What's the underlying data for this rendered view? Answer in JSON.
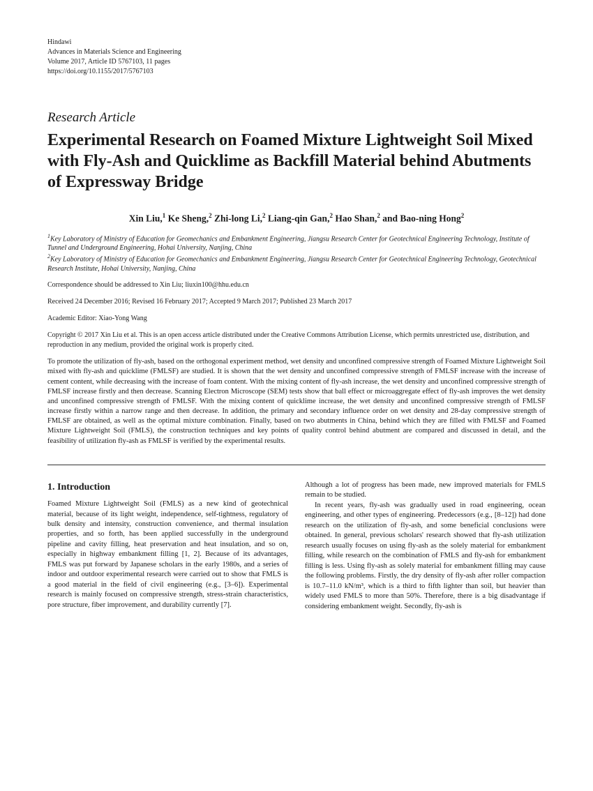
{
  "journal": {
    "publisher": "Hindawi",
    "name": "Advances in Materials Science and Engineering",
    "volume_line": "Volume 2017, Article ID 5767103, 11 pages",
    "doi": "https://doi.org/10.1155/2017/5767103"
  },
  "article_type": "Research Article",
  "title": "Experimental Research on Foamed Mixture Lightweight Soil Mixed with Fly-Ash and Quicklime as Backfill Material behind Abutments of Expressway Bridge",
  "authors_html": "Xin Liu,<sup>1</sup> Ke Sheng,<sup>2</sup> Zhi-long Li,<sup>2</sup> Liang-qin Gan,<sup>2</sup> Hao Shan,<sup>2</sup> and Bao-ning Hong<sup>2</sup>",
  "affiliations": {
    "aff1_sup": "1",
    "aff1": "Key Laboratory of Ministry of Education for Geomechanics and Embankment Engineering, Jiangsu Research Center for Geotechnical Engineering Technology, Institute of Tunnel and Underground Engineering, Hohai University, Nanjing, China",
    "aff2_sup": "2",
    "aff2": "Key Laboratory of Ministry of Education for Geomechanics and Embankment Engineering, Jiangsu Research Center for Geotechnical Engineering Technology, Geotechnical Research Institute, Hohai University, Nanjing, China"
  },
  "correspondence": "Correspondence should be addressed to Xin Liu; liuxin100@hhu.edu.cn",
  "dates": "Received 24 December 2016; Revised 16 February 2017; Accepted 9 March 2017; Published 23 March 2017",
  "editor": "Academic Editor: Xiao-Yong Wang",
  "copyright": "Copyright © 2017 Xin Liu et al. This is an open access article distributed under the Creative Commons Attribution License, which permits unrestricted use, distribution, and reproduction in any medium, provided the original work is properly cited.",
  "abstract": "To promote the utilization of fly-ash, based on the orthogonal experiment method, wet density and unconfined compressive strength of Foamed Mixture Lightweight Soil mixed with fly-ash and quicklime (FMLSF) are studied. It is shown that the wet density and unconfined compressive strength of FMLSF increase with the increase of cement content, while decreasing with the increase of foam content. With the mixing content of fly-ash increase, the wet density and unconfined compressive strength of FMLSF increase firstly and then decrease. Scanning Electron Microscope (SEM) tests show that ball effect or microaggregate effect of fly-ash improves the wet density and unconfined compressive strength of FMLSF. With the mixing content of quicklime increase, the wet density and unconfined compressive strength of FMLSF increase firstly within a narrow range and then decrease. In addition, the primary and secondary influence order on wet density and 28-day compressive strength of FMLSF are obtained, as well as the optimal mixture combination. Finally, based on two abutments in China, behind which they are filled with FMLSF and Foamed Mixture Lightweight Soil (FMLS), the construction techniques and key points of quality control behind abutment are compared and discussed in detail, and the feasibility of utilization fly-ash as FMLSF is verified by the experimental results.",
  "section1_title": "1. Introduction",
  "col_left_p1": "Foamed Mixture Lightweight Soil (FMLS) as a new kind of geotechnical material, because of its light weight, independence, self-tightness, regulatory of bulk density and intensity, construction convenience, and thermal insulation properties, and so forth, has been applied successfully in the underground pipeline and cavity filling, heat preservation and heat insulation, and so on, especially in highway embankment filling [1, 2]. Because of its advantages, FMLS was put forward by Japanese scholars in the early 1980s, and a series of indoor and outdoor experimental research were carried out to show that FMLS is a good material in the field of civil engineering (e.g., [3–6]). Experimental research is mainly focused on compressive strength, stress-strain characteristics, pore structure, fiber improvement, and durability currently [7].",
  "col_right_p1": "Although a lot of progress has been made, new improved materials for FMLS remain to be studied.",
  "col_right_p2": "In recent years, fly-ash was gradually used in road engineering, ocean engineering, and other types of engineering. Predecessors (e.g., [8–12]) had done research on the utilization of fly-ash, and some beneficial conclusions were obtained. In general, previous scholars' research showed that fly-ash utilization research usually focuses on using fly-ash as the solely material for embankment filling, while research on the combination of FMLS and fly-ash for embankment filling is less. Using fly-ash as solely material for embankment filling may cause the following problems. Firstly, the dry density of fly-ash after roller compaction is 10.7–11.0 kN/m³, which is a third to fifth lighter than soil, but heavier than widely used FMLS to more than 50%. Therefore, there is a big disadvantage if considering embankment weight. Secondly, fly-ash is"
}
